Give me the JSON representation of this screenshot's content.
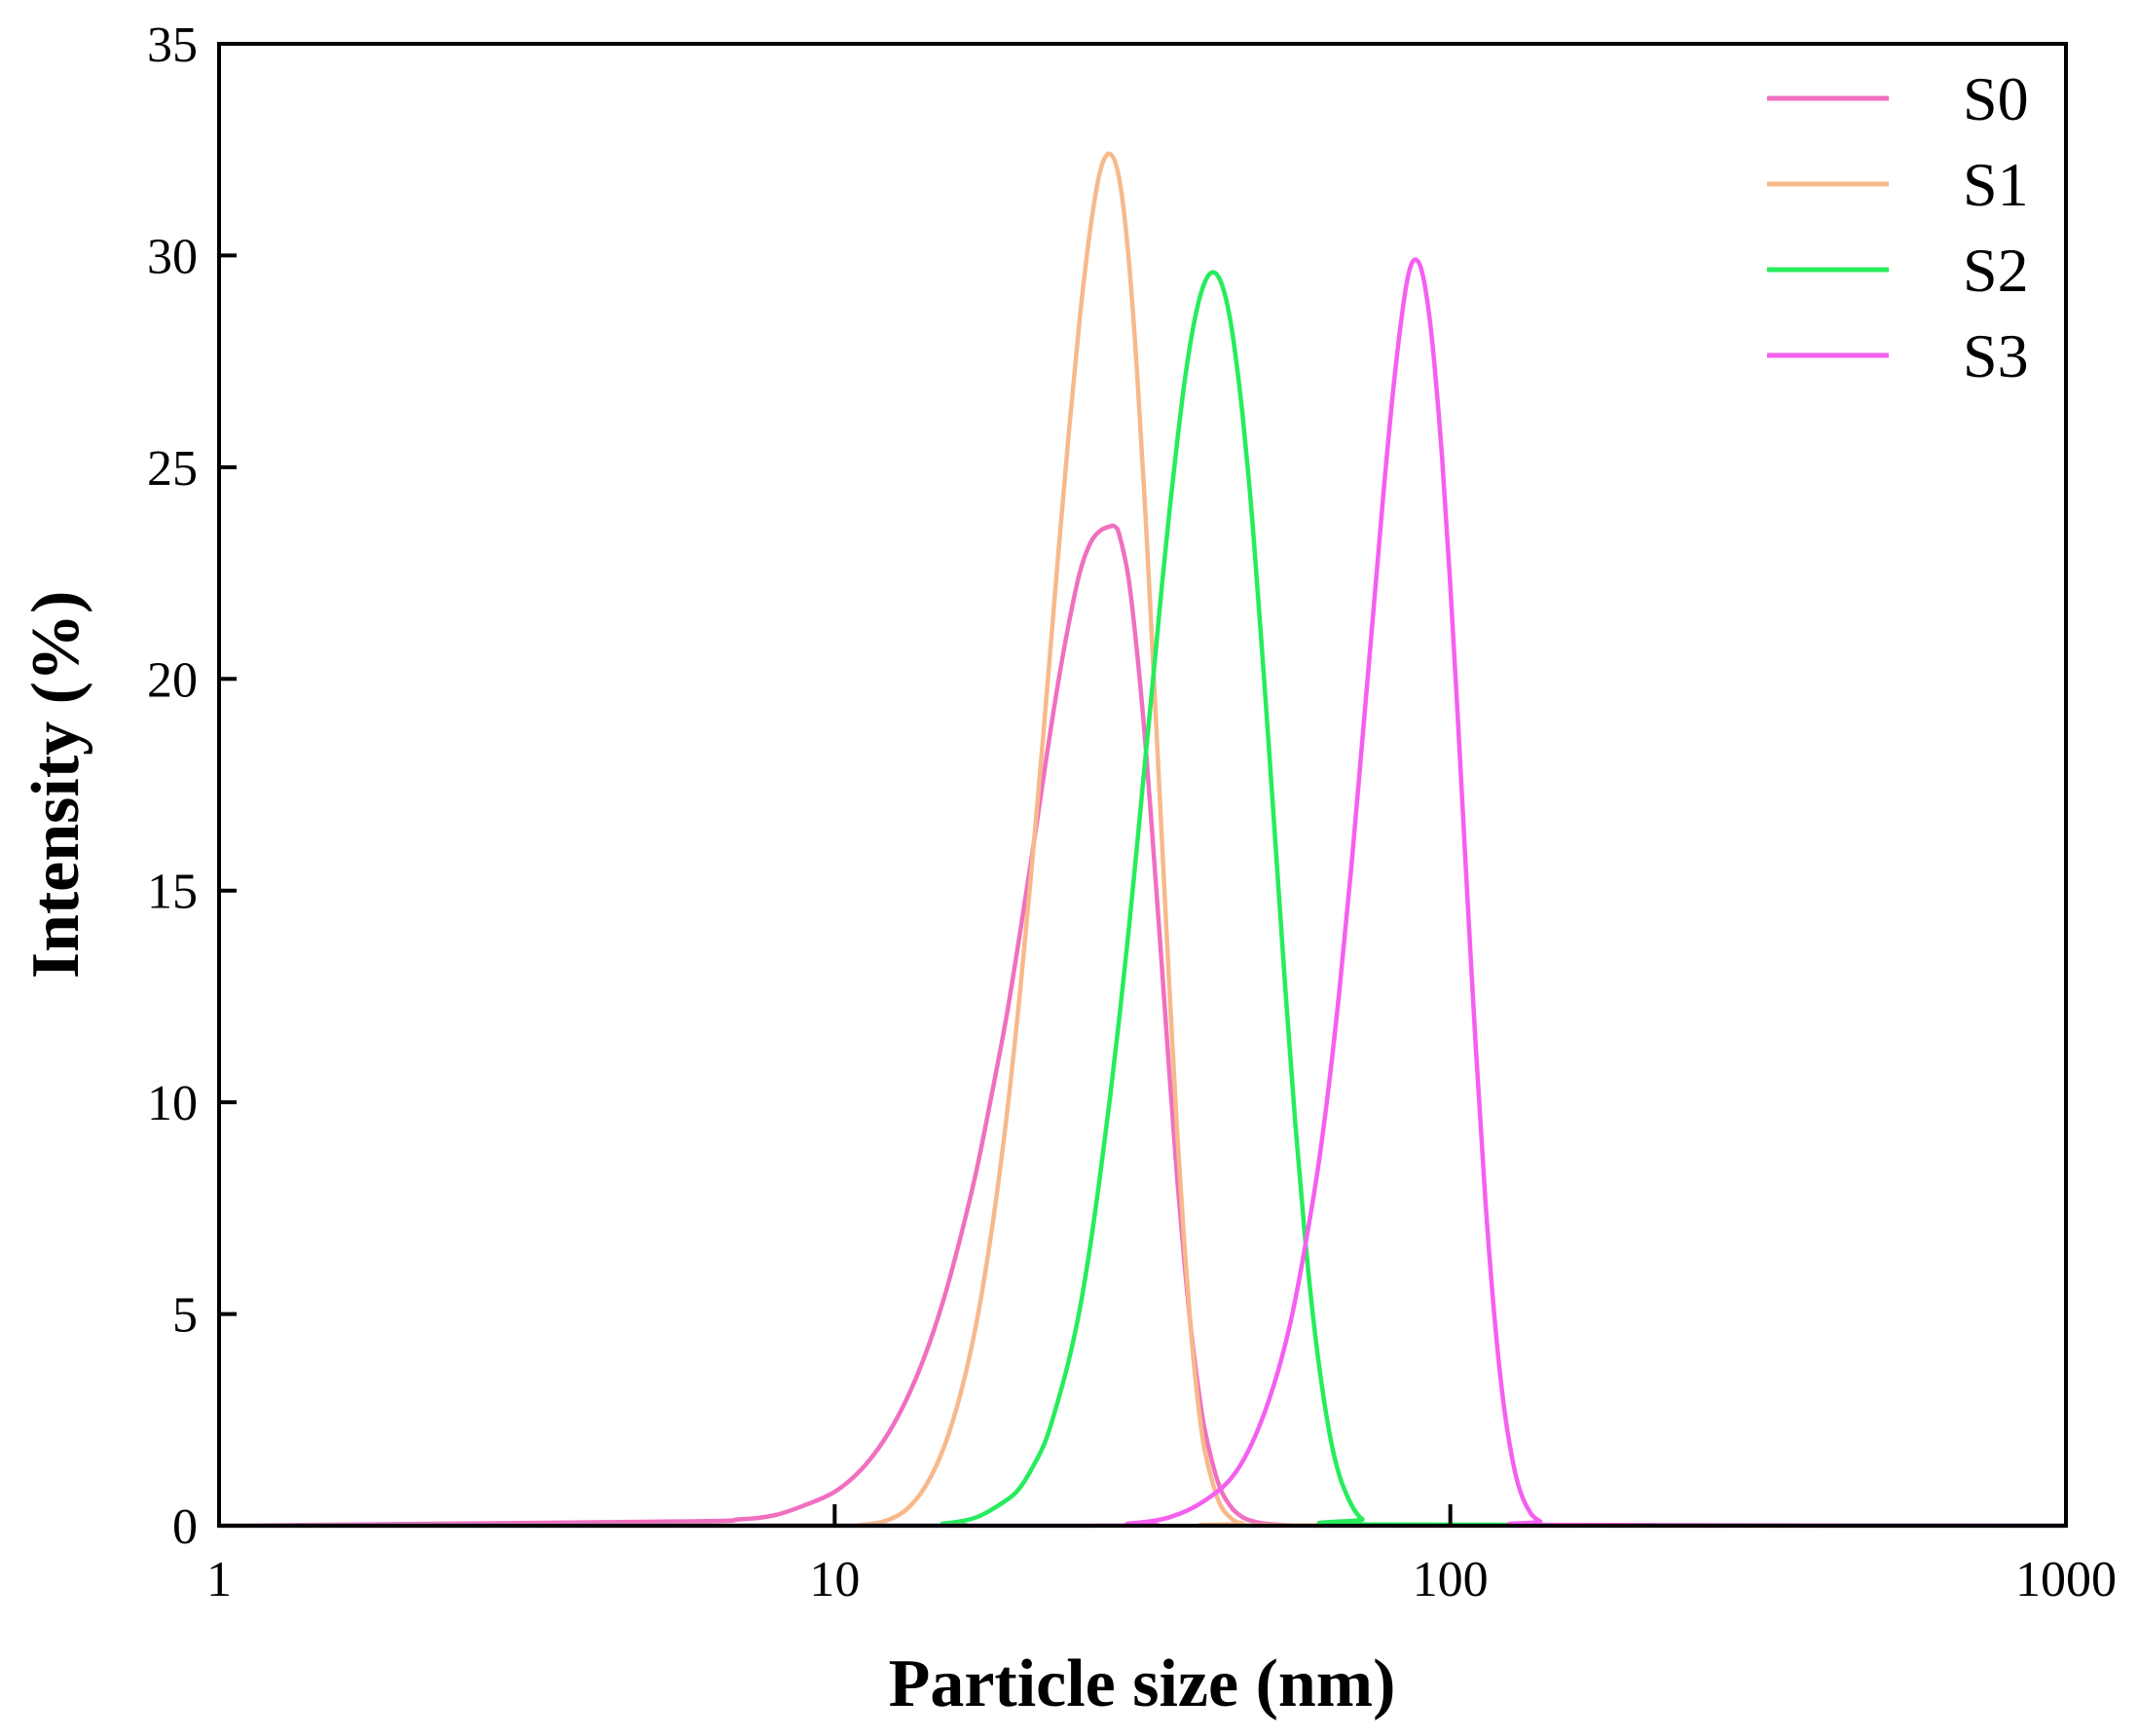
{
  "chart_data": {
    "type": "line",
    "title": "",
    "xlabel": "Particle size (nm)",
    "ylabel": "Intensity (%)",
    "xscale": "log",
    "xlim": [
      1,
      1000
    ],
    "ylim": [
      0,
      35
    ],
    "xticks": [
      1,
      10,
      100,
      1000
    ],
    "xtick_labels": [
      "1",
      "10",
      "100",
      "1000"
    ],
    "yticks": [
      0,
      5,
      10,
      15,
      20,
      25,
      30,
      35
    ],
    "ytick_labels": [
      "0",
      "5",
      "10",
      "15",
      "20",
      "25",
      "30",
      "35"
    ],
    "grid": false,
    "legend_position": "top-right",
    "series": [
      {
        "name": "S0",
        "color": "#f06fc0",
        "x": [
          1,
          5.5,
          7,
          8,
          9,
          10,
          11,
          12,
          13,
          14,
          15,
          16,
          17,
          18,
          19,
          20,
          21,
          22,
          23,
          24,
          25,
          26,
          27,
          28,
          28.5,
          29,
          30,
          31,
          32,
          33,
          34,
          35,
          36,
          37,
          38,
          39,
          40,
          42,
          44,
          46,
          48,
          50,
          55,
          60,
          1000
        ],
        "y": [
          0,
          0.1,
          0.15,
          0.25,
          0.5,
          0.8,
          1.3,
          2.0,
          2.9,
          4.0,
          5.3,
          6.8,
          8.4,
          10.2,
          12.0,
          14.0,
          16.0,
          18.0,
          19.8,
          21.3,
          22.5,
          23.2,
          23.5,
          23.6,
          23.6,
          23.4,
          22.4,
          20.6,
          18.4,
          15.8,
          13.2,
          10.6,
          8.2,
          6.2,
          4.5,
          3.2,
          2.2,
          1.0,
          0.45,
          0.2,
          0.1,
          0.05,
          0.01,
          0,
          0
        ]
      },
      {
        "name": "S1",
        "color": "#f7b98b",
        "x": [
          1,
          10,
          11,
          12,
          13,
          14,
          15,
          16,
          17,
          18,
          19,
          20,
          21,
          22,
          23,
          24,
          25,
          26,
          27,
          28,
          29,
          30,
          31,
          32,
          33,
          34,
          35,
          36,
          37,
          38,
          39,
          40,
          42,
          44,
          46,
          50,
          1000
        ],
        "y": [
          0,
          0,
          0.02,
          0.1,
          0.35,
          0.9,
          1.8,
          3.1,
          4.8,
          7.0,
          9.6,
          12.6,
          15.9,
          19.3,
          22.7,
          25.8,
          28.5,
          30.6,
          32.0,
          32.4,
          31.8,
          30.0,
          27.2,
          23.8,
          20.0,
          16.2,
          12.6,
          9.3,
          6.6,
          4.4,
          2.8,
          1.7,
          0.6,
          0.18,
          0.05,
          0.01,
          0
        ]
      },
      {
        "name": "S2",
        "color": "#27ec5c",
        "x": [
          1,
          13,
          15,
          17,
          19,
          20,
          21,
          22,
          23,
          24,
          25,
          26,
          27,
          28,
          29,
          30,
          31,
          32,
          33,
          34,
          35,
          36,
          37,
          38,
          39,
          40,
          41,
          42,
          43,
          44,
          45,
          46,
          47,
          48,
          50,
          52,
          54,
          56,
          58,
          60,
          62,
          64,
          66,
          68,
          70,
          72,
          75,
          1000
        ],
        "y": [
          0,
          0,
          0.05,
          0.2,
          0.6,
          0.9,
          1.4,
          2.0,
          2.9,
          3.9,
          5.1,
          6.6,
          8.3,
          10.1,
          12.0,
          14.0,
          16.1,
          18.2,
          20.2,
          22.2,
          24.0,
          25.6,
          27.0,
          28.1,
          28.9,
          29.4,
          29.6,
          29.5,
          29.1,
          28.4,
          27.4,
          26.2,
          24.8,
          23.2,
          19.7,
          16.1,
          12.6,
          9.5,
          6.9,
          4.8,
          3.2,
          2.0,
          1.2,
          0.7,
          0.35,
          0.15,
          0.03,
          0
        ]
      },
      {
        "name": "S3",
        "color": "#f55ff0",
        "x": [
          1,
          25,
          30,
          35,
          40,
          45,
          50,
          55,
          60,
          63,
          66,
          69,
          72,
          75,
          78,
          81,
          84,
          86,
          88,
          90,
          92,
          94,
          97,
          100,
          103,
          106,
          110,
          114,
          118,
          122,
          126,
          130,
          135,
          140,
          145,
          1000
        ],
        "y": [
          0,
          0,
          0.05,
          0.2,
          0.6,
          1.3,
          2.7,
          4.8,
          7.8,
          10.0,
          12.6,
          15.5,
          18.6,
          21.6,
          24.5,
          27.0,
          28.9,
          29.7,
          29.9,
          29.6,
          28.8,
          27.6,
          25.2,
          22.2,
          18.9,
          15.5,
          11.3,
          7.7,
          4.9,
          2.9,
          1.6,
          0.8,
          0.3,
          0.1,
          0.02,
          0
        ]
      }
    ]
  }
}
